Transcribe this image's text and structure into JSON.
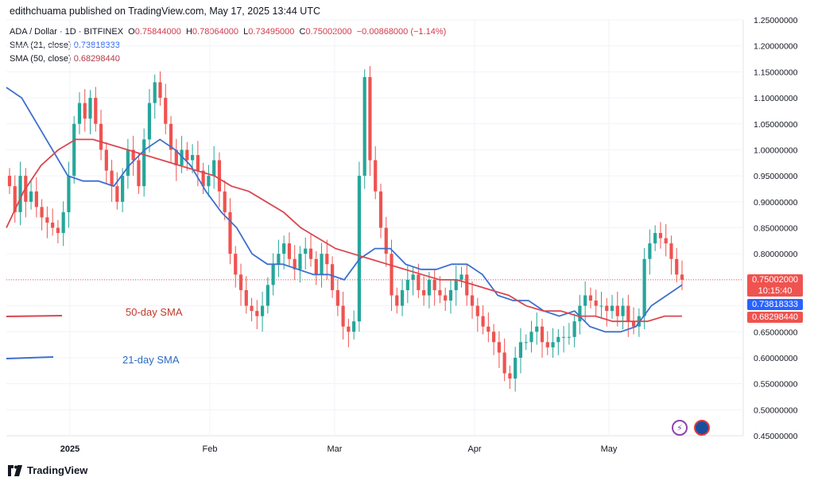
{
  "header": {
    "published": "edithchuama published on TradingView.com, May 17, 2025 13:44 UTC"
  },
  "legend": {
    "symbol": "ADA / Dollar · 1D · BITFINEX",
    "o_label": "O",
    "o": "0.75844000",
    "h_label": "H",
    "h": "0.78064000",
    "l_label": "L",
    "l": "0.73495000",
    "c_label": "C",
    "c": "0.75002000",
    "change": "−0.00868000 (−1.14%)",
    "sma21_label": "SMA (21, close)",
    "sma21_value": "0.73818333",
    "sma50_label": "SMA (50, close)",
    "sma50_value": "0.68298440"
  },
  "price_tags": {
    "last": "0.75002000",
    "countdown": "10:15:40",
    "sma21": "0.73818333",
    "sma50": "0.68298440"
  },
  "footer": {
    "brand": "TradingView"
  },
  "colors": {
    "up": "#26a69a",
    "down": "#ef5350",
    "sma21": "#3d6fce",
    "sma50": "#d9474f",
    "grid": "#f0f3fa"
  },
  "chart_data": {
    "type": "candlestick",
    "y_axis_ticks": [
      "1.25000000",
      "1.20000000",
      "1.15000000",
      "1.10000000",
      "1.05000000",
      "1.00000000",
      "0.95000000",
      "0.90000000",
      "0.85000000",
      "0.80000000",
      "0.75000000",
      "0.70000000",
      "0.65000000",
      "0.60000000",
      "0.55000000",
      "0.50000000",
      "0.45000000"
    ],
    "ylim": [
      0.45,
      1.25
    ],
    "x_axis_ticks": [
      "2025",
      "Feb",
      "Mar",
      "Apr",
      "May"
    ],
    "annotations": [
      "50-day SMA",
      "21-day SMA"
    ],
    "close_series_approx": [
      0.93,
      0.88,
      0.95,
      0.9,
      0.92,
      0.89,
      0.87,
      0.86,
      0.85,
      0.84,
      0.88,
      0.95,
      1.05,
      1.09,
      1.06,
      1.1,
      1.05,
      1.0,
      0.96,
      0.93,
      0.9,
      0.95,
      1.0,
      0.98,
      0.93,
      1.02,
      1.09,
      1.13,
      1.1,
      1.05,
      1.0,
      0.97,
      1.0,
      0.98,
      0.99,
      0.96,
      0.93,
      0.95,
      0.98,
      0.92,
      0.88,
      0.8,
      0.76,
      0.73,
      0.7,
      0.69,
      0.68,
      0.7,
      0.74,
      0.78,
      0.8,
      0.82,
      0.79,
      0.77,
      0.8,
      0.81,
      0.79,
      0.76,
      0.8,
      0.78,
      0.73,
      0.7,
      0.66,
      0.65,
      0.67,
      0.95,
      1.14,
      0.98,
      0.92,
      0.85,
      0.8,
      0.72,
      0.7,
      0.73,
      0.75,
      0.76,
      0.73,
      0.72,
      0.75,
      0.73,
      0.72,
      0.71,
      0.73,
      0.75,
      0.76,
      0.72,
      0.7,
      0.68,
      0.66,
      0.65,
      0.63,
      0.61,
      0.57,
      0.56,
      0.6,
      0.63,
      0.63,
      0.65,
      0.66,
      0.63,
      0.62,
      0.63,
      0.64,
      0.64,
      0.64,
      0.67,
      0.7,
      0.72,
      0.71,
      0.7,
      0.7,
      0.69,
      0.7,
      0.68,
      0.7,
      0.67,
      0.66,
      0.68,
      0.79,
      0.82,
      0.84,
      0.83,
      0.82,
      0.79,
      0.76,
      0.75
    ],
    "sma21_approx": [
      1.12,
      1.1,
      1.05,
      1.0,
      0.95,
      0.94,
      0.94,
      0.93,
      0.97,
      1.0,
      1.02,
      1.0,
      0.97,
      0.92,
      0.88,
      0.85,
      0.8,
      0.78,
      0.78,
      0.77,
      0.76,
      0.76,
      0.75,
      0.79,
      0.81,
      0.81,
      0.78,
      0.77,
      0.77,
      0.78,
      0.78,
      0.76,
      0.72,
      0.71,
      0.71,
      0.69,
      0.68,
      0.69,
      0.66,
      0.65,
      0.65,
      0.66,
      0.7,
      0.72,
      0.74
    ],
    "sma50_approx": [
      0.85,
      0.92,
      0.97,
      1.0,
      1.02,
      1.02,
      1.01,
      1.0,
      0.99,
      0.98,
      0.97,
      0.96,
      0.95,
      0.93,
      0.92,
      0.9,
      0.88,
      0.85,
      0.83,
      0.81,
      0.8,
      0.79,
      0.78,
      0.77,
      0.76,
      0.75,
      0.75,
      0.74,
      0.73,
      0.72,
      0.7,
      0.69,
      0.69,
      0.68,
      0.68,
      0.67,
      0.67,
      0.67,
      0.68,
      0.68
    ]
  }
}
